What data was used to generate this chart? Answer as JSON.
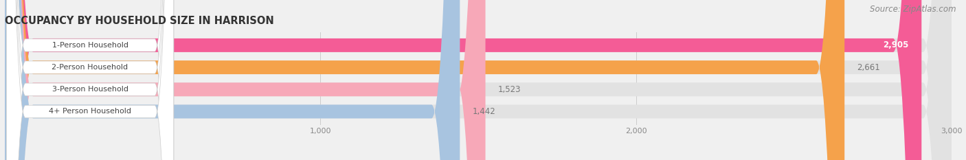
{
  "title": "OCCUPANCY BY HOUSEHOLD SIZE IN HARRISON",
  "source": "Source: ZipAtlas.com",
  "categories": [
    "1-Person Household",
    "2-Person Household",
    "3-Person Household",
    "4+ Person Household"
  ],
  "values": [
    2905,
    2661,
    1523,
    1442
  ],
  "bar_colors": [
    "#f45c96",
    "#f5a24b",
    "#f7a8b8",
    "#a8c4e0"
  ],
  "pill_colors": [
    "#f45c96",
    "#f5a24b",
    "#f7a8b8",
    "#a8c4e0"
  ],
  "background_color": "#f0f0f0",
  "bar_bg_color": "#e2e2e2",
  "pill_bg_color": "#ffffff",
  "xlim_max": 3000,
  "xticks": [
    1000,
    2000,
    3000
  ],
  "title_fontsize": 10.5,
  "source_fontsize": 8.5,
  "bar_height": 0.62,
  "bar_label_fontsize": 8.5,
  "category_fontsize": 8,
  "value_label_threshold": 2800
}
